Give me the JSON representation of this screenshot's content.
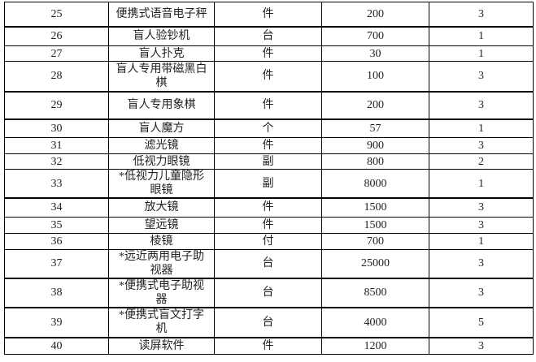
{
  "page": {
    "background": "#ffffff",
    "text_color": "#1f1f1f",
    "border_color": "#000000"
  },
  "table": {
    "rows": [
      {
        "index": "25",
        "name": "便携式语音电子秤",
        "unit": "件",
        "price": "200",
        "quantity": "3"
      },
      {
        "index": "26",
        "name": "盲人验钞机",
        "unit": "台",
        "price": "700",
        "quantity": "1"
      },
      {
        "index": "27",
        "name": "盲人扑克",
        "unit": "件",
        "price": "30",
        "quantity": "1"
      },
      {
        "index": "28",
        "name": "盲人专用带磁黑白\n棋",
        "unit": "件",
        "price": "100",
        "quantity": "3"
      },
      {
        "index": "29",
        "name": "盲人专用象棋",
        "unit": "件",
        "price": "200",
        "quantity": "3"
      },
      {
        "index": "30",
        "name": "盲人魔方",
        "unit": "个",
        "price": "57",
        "quantity": "1"
      },
      {
        "index": "31",
        "name": "滤光镜",
        "unit": "件",
        "price": "900",
        "quantity": "3"
      },
      {
        "index": "32",
        "name": "低视力眼镜",
        "unit": "副",
        "price": "800",
        "quantity": "2"
      },
      {
        "index": "33",
        "name": "*低视力儿童隐形\n眼镜",
        "unit": "副",
        "price": "8000",
        "quantity": "1"
      },
      {
        "index": "34",
        "name": "放大镜",
        "unit": "件",
        "price": "1500",
        "quantity": "3"
      },
      {
        "index": "35",
        "name": "望远镜",
        "unit": "件",
        "price": "1500",
        "quantity": "3"
      },
      {
        "index": "36",
        "name": "棱镜",
        "unit": "付",
        "price": "700",
        "quantity": "1"
      },
      {
        "index": "37",
        "name": "*远近两用电子助\n视器",
        "unit": "台",
        "price": "25000",
        "quantity": "3"
      },
      {
        "index": "38",
        "name": "*便携式电子助视\n器",
        "unit": "台",
        "price": "8500",
        "quantity": "3"
      },
      {
        "index": "39",
        "name": "*便携式盲文打字\n机",
        "unit": "台",
        "price": "4000",
        "quantity": "5"
      },
      {
        "index": "40",
        "name": "读屏软件",
        "unit": "件",
        "price": "1200",
        "quantity": "3"
      }
    ]
  }
}
